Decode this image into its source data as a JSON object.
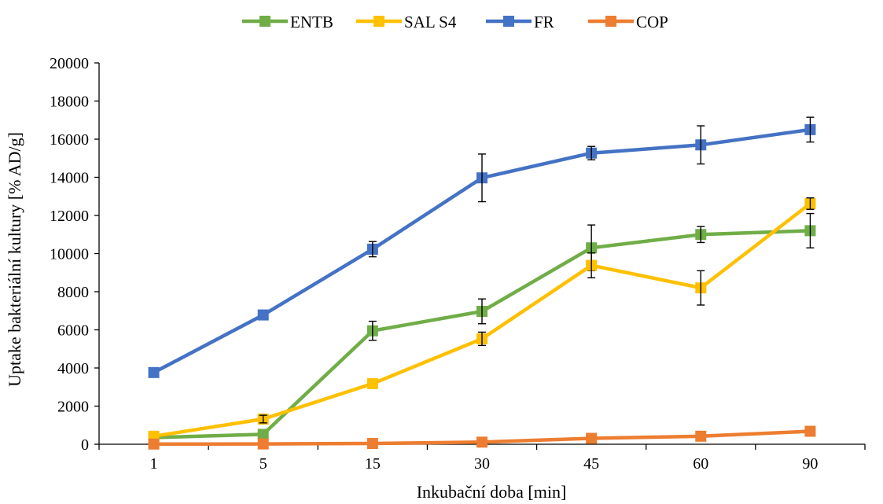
{
  "chart_data": {
    "type": "line",
    "title": "",
    "xlabel": "Inkubační doba [min]",
    "ylabel": "Uptake bakteriální kultury [% AD/g]",
    "categories": [
      "1",
      "5",
      "15",
      "30",
      "45",
      "60",
      "90"
    ],
    "ylim": [
      0,
      20000
    ],
    "yticks": [
      0,
      2000,
      4000,
      6000,
      8000,
      10000,
      12000,
      14000,
      16000,
      18000,
      20000
    ],
    "grid": false,
    "legend_position": "top",
    "series": [
      {
        "name": "ENTB",
        "color": "#70ad47",
        "values": [
          350,
          520,
          5950,
          6970,
          10300,
          11000,
          11200
        ],
        "errors": [
          0,
          0,
          500,
          650,
          1200,
          420,
          900
        ]
      },
      {
        "name": "SAL S4",
        "color": "#ffc000",
        "values": [
          420,
          1320,
          3180,
          5530,
          9380,
          8200,
          12620
        ],
        "errors": [
          0,
          200,
          0,
          350,
          650,
          900,
          300
        ]
      },
      {
        "name": "FR",
        "color": "#4472c4",
        "values": [
          3760,
          6780,
          10230,
          13970,
          15270,
          15700,
          16500
        ],
        "errors": [
          0,
          0,
          400,
          1250,
          350,
          1000,
          650
        ]
      },
      {
        "name": "COP",
        "color": "#ed7d31",
        "values": [
          10,
          15,
          40,
          110,
          310,
          420,
          680
        ],
        "errors": [
          0,
          0,
          0,
          0,
          0,
          0,
          0
        ]
      }
    ]
  }
}
